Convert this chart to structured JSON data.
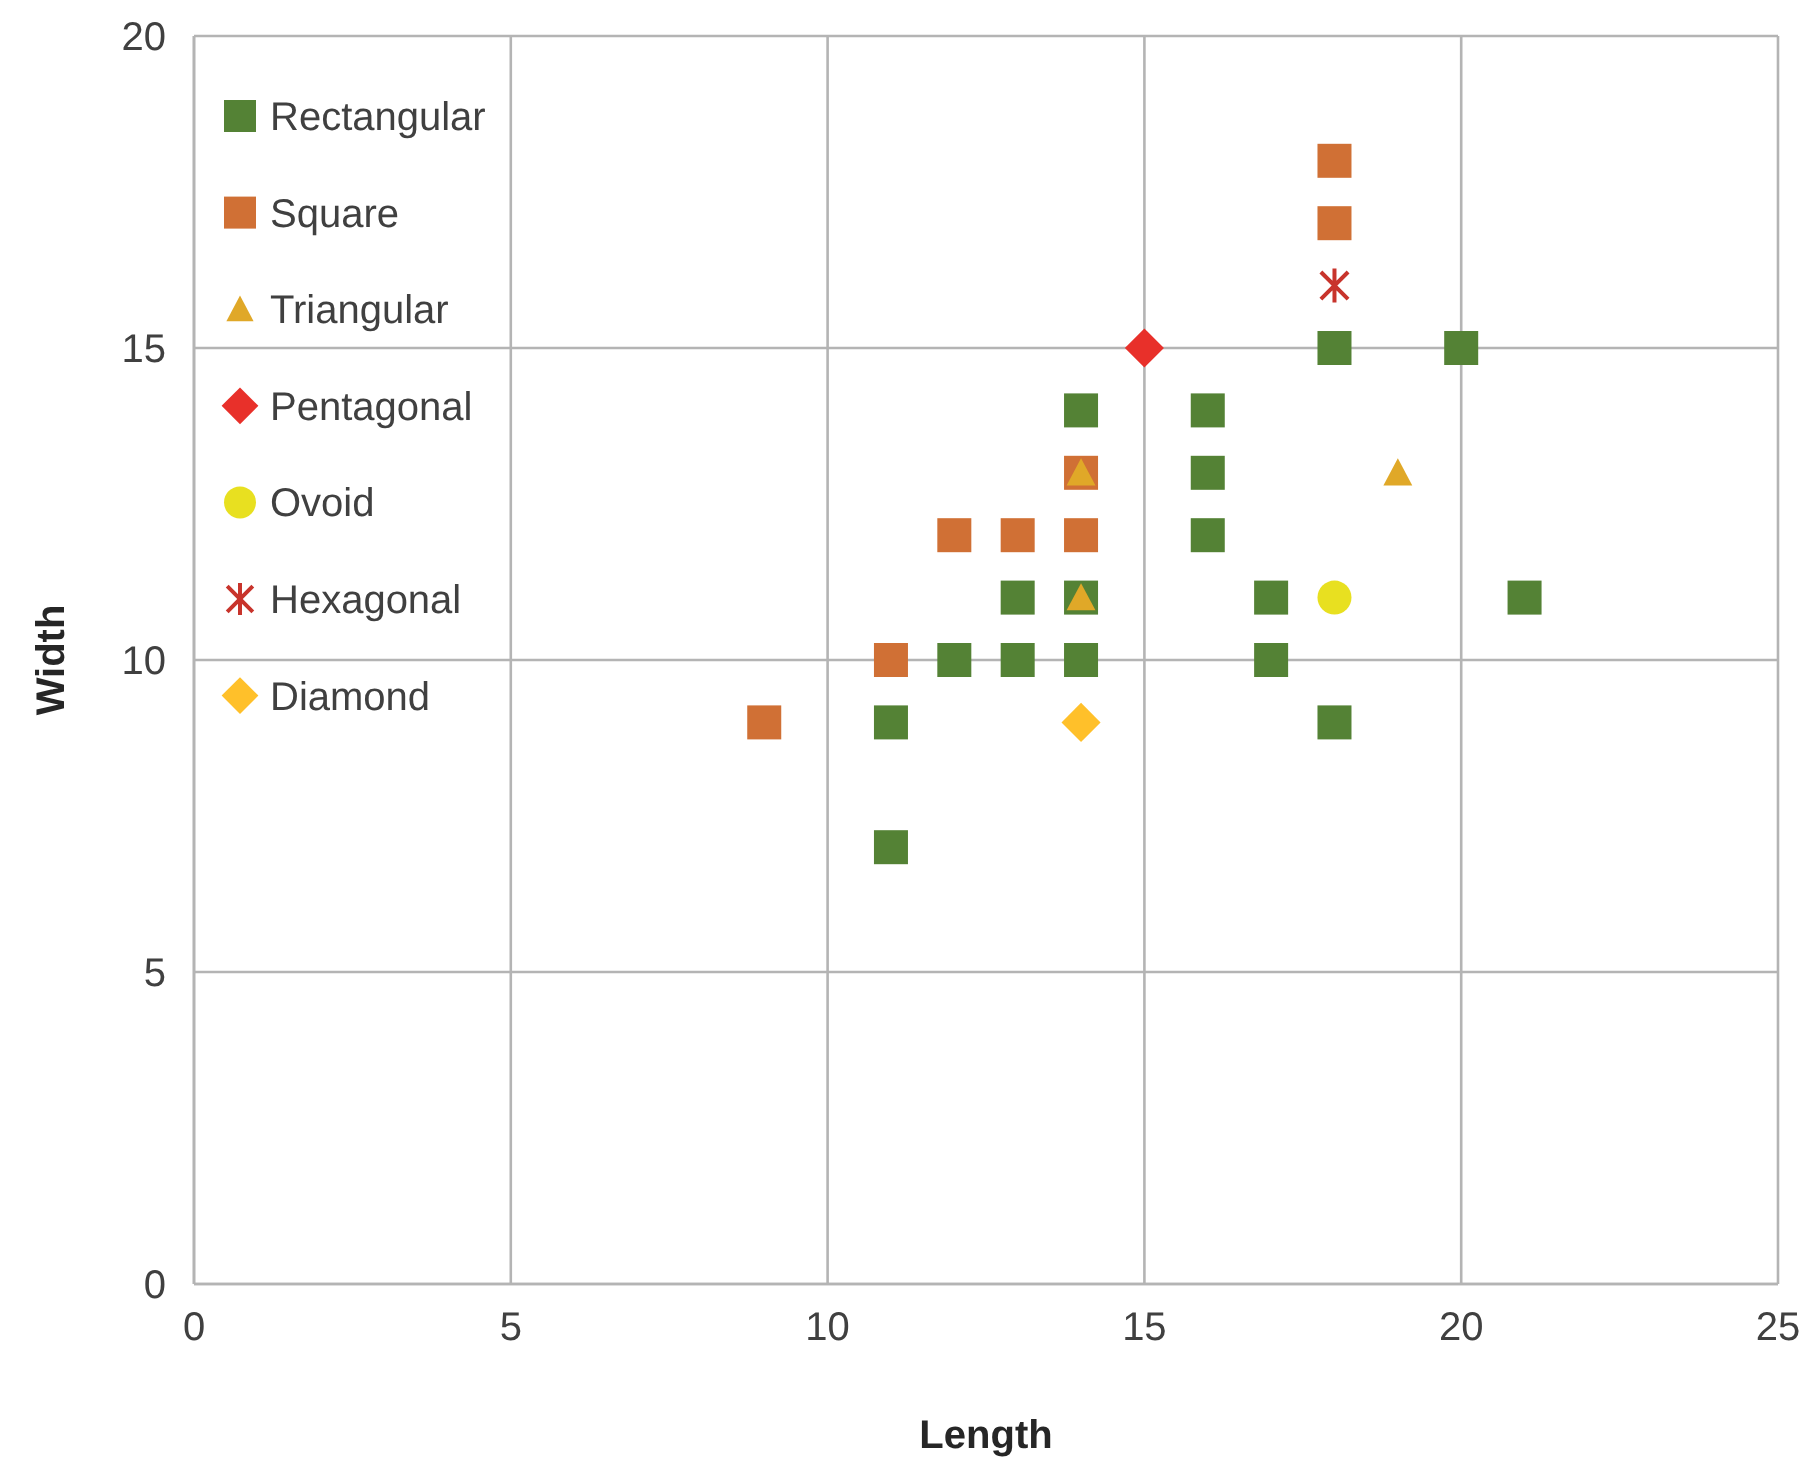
{
  "chart_data": {
    "type": "scatter",
    "xlabel": "Length",
    "ylabel": "Width",
    "xlim": [
      0,
      25
    ],
    "xticks": [
      0,
      5,
      10,
      15,
      20,
      25
    ],
    "ylim": [
      0,
      20
    ],
    "yticks": [
      0,
      5,
      10,
      15,
      20
    ],
    "grid": true,
    "legend": "top left",
    "series": [
      {
        "name": "Rectangular",
        "color": "#548235",
        "marker": "square",
        "x": [
          11,
          11,
          12,
          13,
          13,
          14,
          14,
          14,
          16,
          16,
          16,
          17,
          17,
          18,
          18,
          20,
          21
        ],
        "values": [
          7,
          9,
          10,
          10,
          11,
          10,
          11,
          14,
          14,
          13,
          12,
          11,
          10,
          9,
          15,
          15,
          11
        ]
      },
      {
        "name": "Square",
        "color": "#d07035",
        "marker": "square",
        "x": [
          9,
          11,
          12,
          13,
          14,
          14,
          18,
          18
        ],
        "values": [
          9,
          10,
          12,
          12,
          12,
          13,
          18,
          17
        ]
      },
      {
        "name": "Triangular",
        "color": "#e0a828",
        "marker": "triangle",
        "x": [
          14,
          14,
          19
        ],
        "values": [
          13,
          11,
          13
        ]
      },
      {
        "name": "Pentagonal",
        "color": "#e8302a",
        "marker": "diamond",
        "x": [
          15
        ],
        "values": [
          15
        ]
      },
      {
        "name": "Ovoid",
        "color": "#e8e020",
        "marker": "circle",
        "x": [
          18
        ],
        "values": [
          11
        ]
      },
      {
        "name": "Hexagonal",
        "color": "#c8342c",
        "marker": "cross",
        "x": [
          18
        ],
        "values": [
          16
        ]
      },
      {
        "name": "Diamond",
        "color": "#ffc02a",
        "marker": "diamond",
        "x": [
          14
        ],
        "values": [
          9
        ]
      }
    ]
  }
}
